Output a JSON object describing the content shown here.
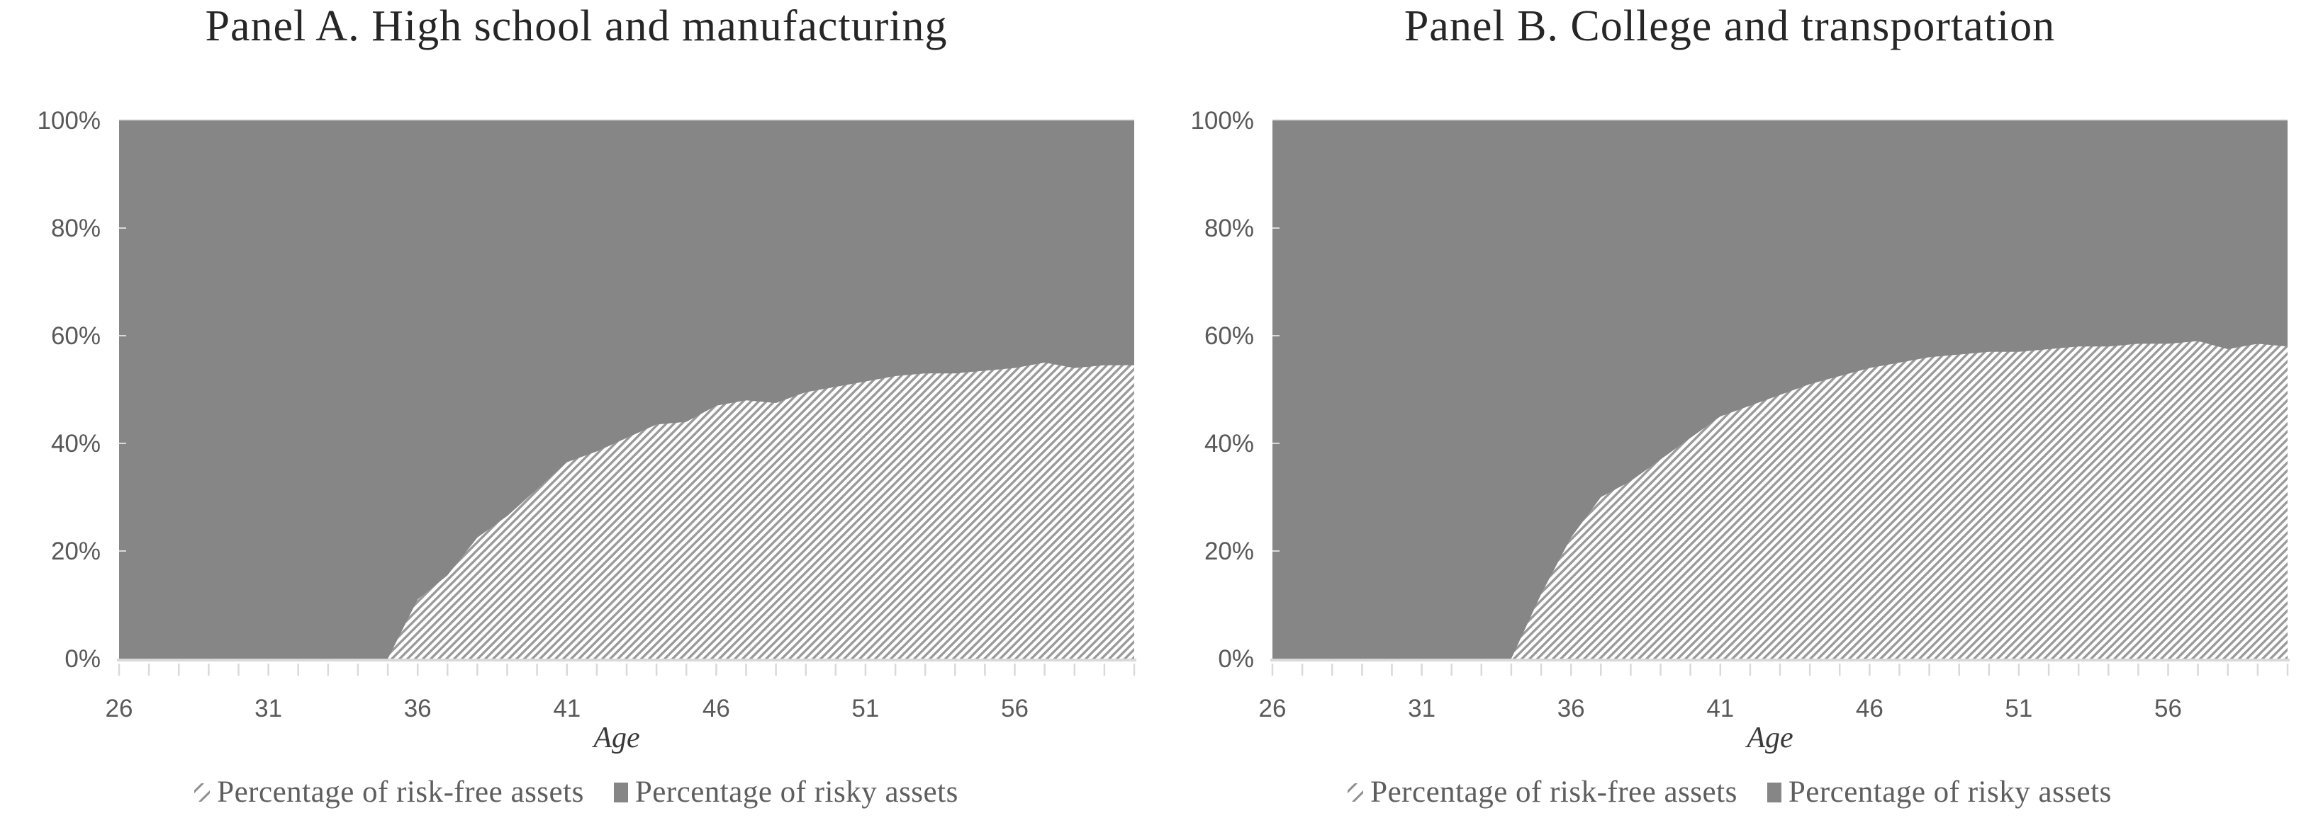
{
  "colors": {
    "risky_fill": "#868686",
    "hatch_line": "#9a9a9a",
    "hatch_bg": "#ffffff",
    "axis_line": "#d9d9d9",
    "tick_mark": "#d9d9d9",
    "tick_label": "#595959",
    "plot_top_line": "#e9e9e9",
    "title_text": "#262626",
    "legend_text": "#5e5e5e",
    "age_label_text": "#3a3a3a"
  },
  "chart_data": [
    {
      "type": "area",
      "stacked": true,
      "title": "Panel A. High school and manufacturing",
      "xlabel": "Age",
      "xlim": [
        26,
        60
      ],
      "ylim": [
        0,
        100
      ],
      "grid": false,
      "legend_position": "bottom",
      "x": [
        26,
        27,
        28,
        29,
        30,
        31,
        32,
        33,
        34,
        35,
        36,
        37,
        38,
        39,
        40,
        41,
        42,
        43,
        44,
        45,
        46,
        47,
        48,
        49,
        50,
        51,
        52,
        53,
        54,
        55,
        56,
        57,
        58,
        59,
        60
      ],
      "x_ticks": [
        26,
        31,
        36,
        41,
        46,
        51,
        56
      ],
      "y_ticks": [
        0,
        20,
        40,
        60,
        80,
        100
      ],
      "y_tick_labels": [
        "0%",
        "20%",
        "40%",
        "60%",
        "80%",
        "100%"
      ],
      "series": [
        {
          "name": "Percentage of risk-free assets",
          "style": "hatched",
          "values": [
            0,
            0,
            0,
            0,
            0,
            0,
            0,
            0,
            0,
            0,
            11,
            15.5,
            22.5,
            26.5,
            31.5,
            36.5,
            38.5,
            41,
            43.5,
            44,
            47,
            48,
            47.5,
            49.5,
            50.5,
            51.5,
            52.5,
            53,
            53,
            53.5,
            54,
            55,
            54,
            54.5,
            54.5
          ]
        },
        {
          "name": "Percentage of risky assets",
          "style": "solid",
          "values": [
            100,
            100,
            100,
            100,
            100,
            100,
            100,
            100,
            100,
            100,
            89,
            84.5,
            77.5,
            73.5,
            68.5,
            63.5,
            61.5,
            59,
            56.5,
            56,
            53,
            52,
            52.5,
            50.5,
            49.5,
            48.5,
            47.5,
            47,
            47,
            46.5,
            46,
            45,
            46,
            45.5,
            45.5
          ]
        }
      ]
    },
    {
      "type": "area",
      "stacked": true,
      "title": "Panel B. College and transportation",
      "xlabel": "Age",
      "xlim": [
        26,
        60
      ],
      "ylim": [
        0,
        100
      ],
      "grid": false,
      "legend_position": "bottom",
      "x": [
        26,
        27,
        28,
        29,
        30,
        31,
        32,
        33,
        34,
        35,
        36,
        37,
        38,
        39,
        40,
        41,
        42,
        43,
        44,
        45,
        46,
        47,
        48,
        49,
        50,
        51,
        52,
        53,
        54,
        55,
        56,
        57,
        58,
        59,
        60
      ],
      "x_ticks": [
        26,
        31,
        36,
        41,
        46,
        51,
        56
      ],
      "y_ticks": [
        0,
        20,
        40,
        60,
        80,
        100
      ],
      "y_tick_labels": [
        "0%",
        "20%",
        "40%",
        "60%",
        "80%",
        "100%"
      ],
      "series": [
        {
          "name": "Percentage of risk-free assets",
          "style": "hatched",
          "values": [
            0,
            0,
            0,
            0,
            0,
            0,
            0,
            0,
            0,
            12,
            22.5,
            30,
            33,
            37,
            41,
            45,
            47,
            49,
            51,
            52.5,
            54,
            55,
            56,
            56.5,
            57,
            57,
            57.5,
            58,
            58,
            58.5,
            58.5,
            59,
            57.5,
            58.5,
            58
          ]
        },
        {
          "name": "Percentage of risky assets",
          "style": "solid",
          "values": [
            100,
            100,
            100,
            100,
            100,
            100,
            100,
            100,
            100,
            88,
            77.5,
            70,
            67,
            63,
            59,
            55,
            53,
            51,
            49,
            47.5,
            46,
            45,
            44,
            43.5,
            43,
            43,
            42.5,
            42,
            42,
            41.5,
            41.5,
            41,
            42.5,
            41.5,
            42
          ]
        }
      ]
    }
  ]
}
